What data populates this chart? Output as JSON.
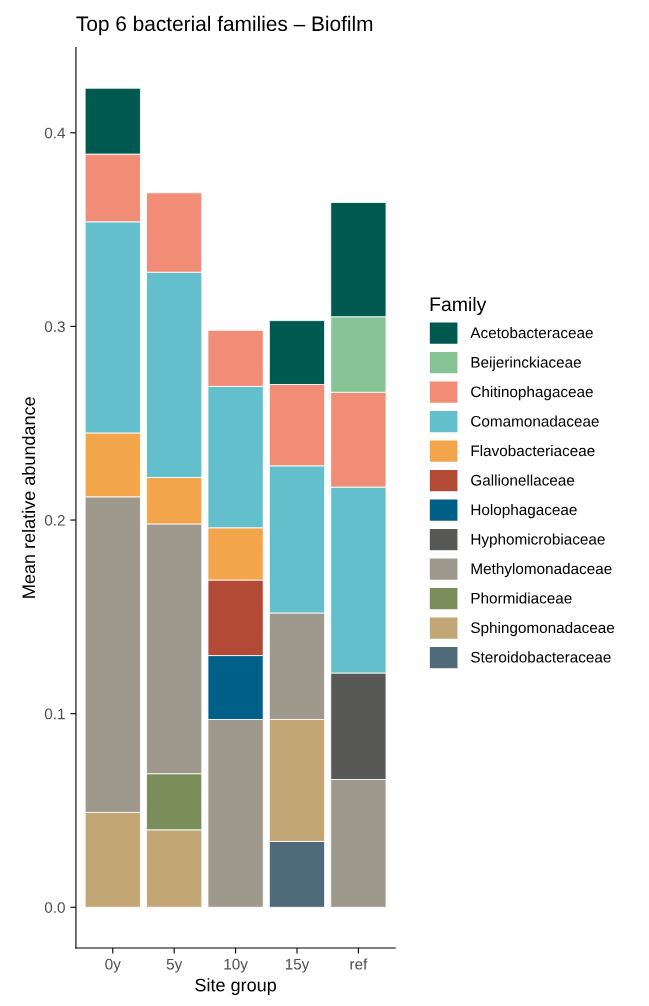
{
  "chart_data": {
    "type": "bar",
    "stacked": true,
    "title": "Top 6 bacterial families – Biofilm",
    "xlabel": "Site group",
    "ylabel": "Mean relative abundance",
    "legend_title": "Family",
    "legend": "right",
    "grid": false,
    "categories": [
      "0y",
      "5y",
      "10y",
      "15y",
      "ref"
    ],
    "ylim": [
      -0.021,
      0.444
    ],
    "yticks": [
      {
        "value": 0,
        "label": "0.0"
      },
      0.1,
      0.2,
      0.3,
      0.4
    ],
    "series": [
      {
        "name": "Steroidobacteraceae",
        "color": "#4f6a78",
        "values": [
          null,
          null,
          null,
          0.034,
          null
        ]
      },
      {
        "name": "Sphingomonadaceae",
        "color": "#c2a676",
        "values": [
          0.049,
          0.04,
          null,
          0.063,
          null
        ]
      },
      {
        "name": "Phormidiaceae",
        "color": "#7b8d5b",
        "values": [
          null,
          0.029,
          null,
          null,
          null
        ]
      },
      {
        "name": "Methylomonadaceae",
        "color": "#9e998c",
        "values": [
          0.163,
          0.129,
          0.097,
          0.055,
          0.066
        ]
      },
      {
        "name": "Hyphomicrobiaceae",
        "color": "#585856",
        "values": [
          null,
          null,
          null,
          null,
          0.055
        ]
      },
      {
        "name": "Holophagaceae",
        "color": "#005f87",
        "values": [
          null,
          null,
          0.033,
          null,
          null
        ]
      },
      {
        "name": "Gallionellaceae",
        "color": "#b34a35",
        "values": [
          null,
          null,
          0.039,
          null,
          null
        ]
      },
      {
        "name": "Flavobacteriaceae",
        "color": "#f3a54b",
        "values": [
          0.033,
          0.024,
          0.027,
          null,
          null
        ]
      },
      {
        "name": "Comamonadaceae",
        "color": "#63bfcb",
        "values": [
          0.109,
          0.106,
          0.073,
          0.076,
          0.096
        ]
      },
      {
        "name": "Chitinophagaceae",
        "color": "#f18c77",
        "values": [
          0.035,
          0.041,
          0.029,
          0.042,
          0.049
        ]
      },
      {
        "name": "Beijerinckiaceae",
        "color": "#86c495",
        "values": [
          null,
          null,
          null,
          null,
          0.039
        ]
      },
      {
        "name": "Acetobacteraceae",
        "color": "#00594f",
        "values": [
          0.034,
          null,
          null,
          0.033,
          0.059
        ]
      }
    ]
  }
}
